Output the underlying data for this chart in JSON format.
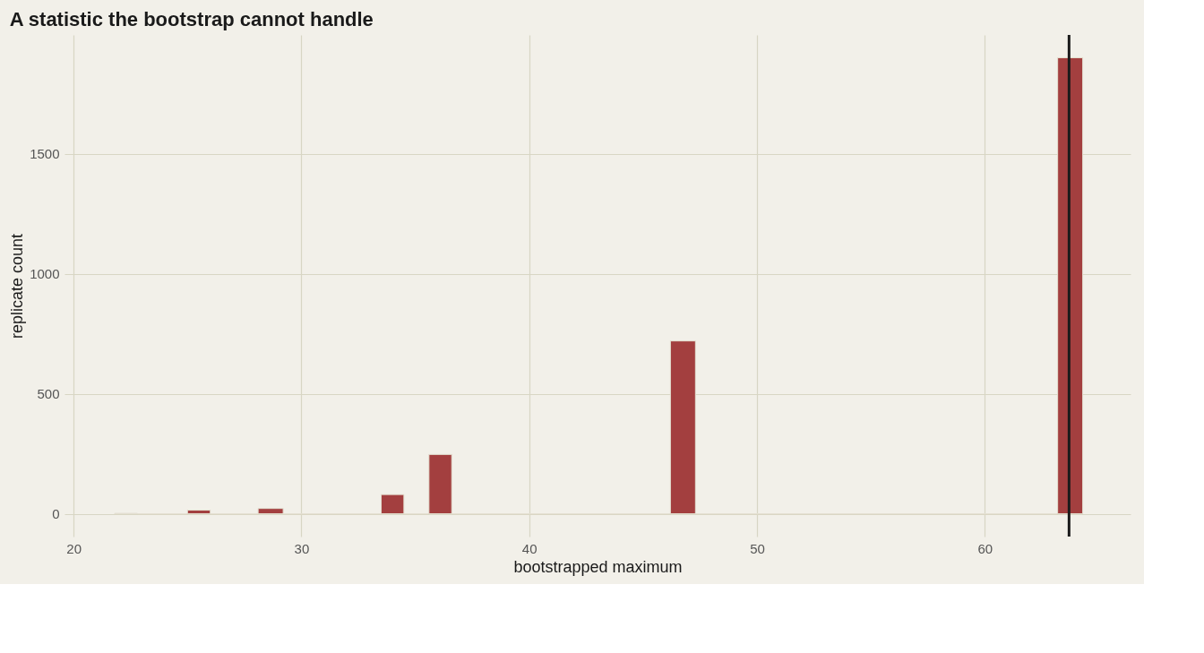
{
  "chart_data": {
    "type": "histogram",
    "title": "A statistic the bootstrap cannot handle",
    "xlabel": "bootstrapped maximum",
    "ylabel": "replicate count",
    "bins": [
      21.8,
      22.8,
      25.0,
      26.0,
      28.1,
      29.2,
      33.5,
      34.5,
      35.6,
      36.6,
      46.2,
      47.3,
      63.2,
      64.3
    ],
    "values": [
      2,
      0,
      15,
      0,
      22,
      0,
      80,
      0,
      247,
      0,
      720,
      0,
      1900
    ],
    "color": "#a33f3f",
    "xlim": [
      19.6,
      66.4
    ],
    "xticks": [
      20,
      30,
      40,
      50,
      60
    ],
    "ylim": [
      -95,
      1995
    ],
    "yticks": [
      0,
      500,
      1000,
      1500
    ],
    "ref_lines": [
      {
        "axis": "x",
        "value": 63.7,
        "color": "#1a1a1a"
      }
    ],
    "grid": true
  }
}
